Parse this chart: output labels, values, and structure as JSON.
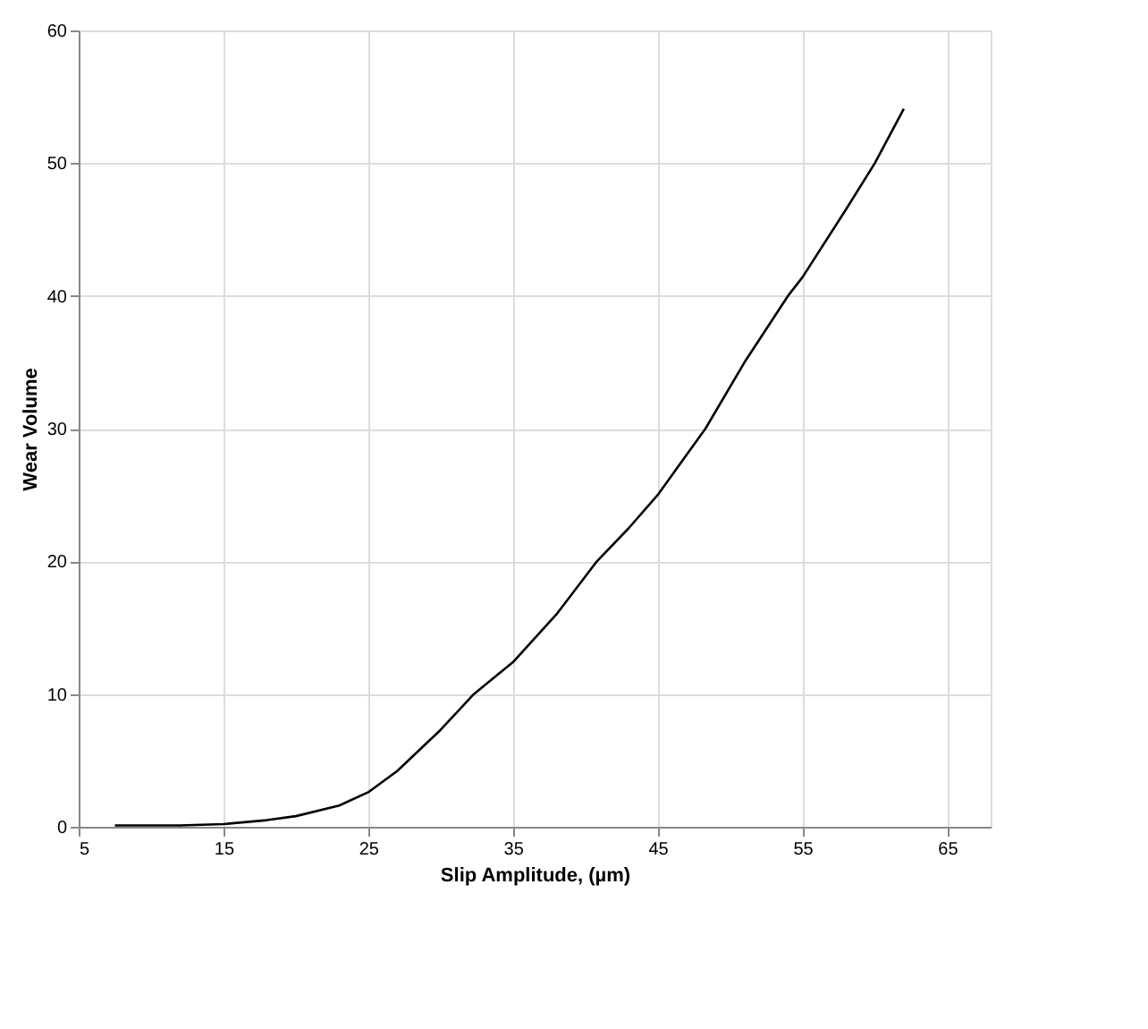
{
  "chart_data": {
    "type": "line",
    "xlabel": "Slip Amplitude, (µm)",
    "ylabel": "Wear Volume",
    "x": [
      7.5,
      12,
      15,
      18,
      20,
      23,
      25,
      27,
      30,
      32.3,
      35,
      38,
      40.8,
      43,
      45,
      48.3,
      51,
      54,
      55,
      58,
      60,
      62
    ],
    "series": [
      {
        "color": "#000000",
        "values": [
          0.1,
          0.1,
          0.2,
          0.5,
          0.8,
          1.6,
          2.6,
          4.2,
          7.3,
          10,
          12.4,
          16,
          20,
          22.5,
          25,
          30,
          35,
          40,
          41.4,
          46.5,
          50,
          54.1
        ]
      }
    ],
    "xlim": [
      5,
      68
    ],
    "xticks": [
      5,
      15,
      25,
      35,
      45,
      55,
      65
    ],
    "ylim": [
      0,
      60
    ],
    "yticks": [
      0,
      10,
      20,
      30,
      40,
      50,
      60
    ],
    "grid": true,
    "marker": "none",
    "line_style": "solid",
    "legend": false
  }
}
